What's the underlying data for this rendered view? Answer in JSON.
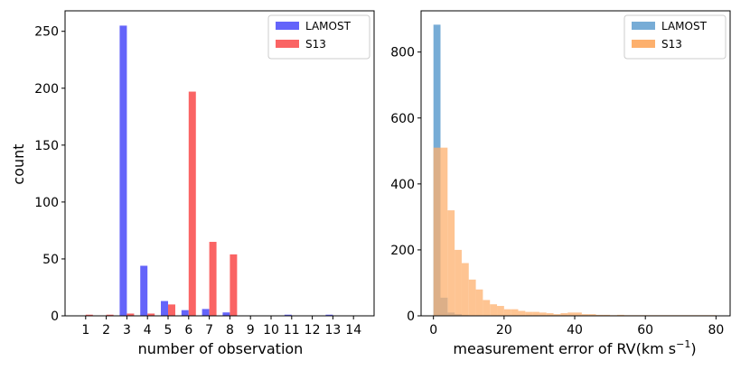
{
  "chart_data": [
    {
      "type": "bar",
      "title": "",
      "xlabel": "number of observation",
      "ylabel": "count",
      "categories": [
        "1",
        "2",
        "3",
        "4",
        "5",
        "6",
        "7",
        "8",
        "9",
        "10",
        "11",
        "12",
        "13",
        "14"
      ],
      "xlim": [
        0,
        15
      ],
      "ylim": [
        0,
        268
      ],
      "yticks": [
        0,
        50,
        100,
        150,
        200,
        250
      ],
      "legend_position": "top-right",
      "series": [
        {
          "name": "LAMOST",
          "color": "#6464fa",
          "values": [
            0,
            0,
            255,
            44,
            13,
            5,
            6,
            3,
            0,
            0,
            1,
            0,
            1,
            0
          ]
        },
        {
          "name": "S13",
          "color": "#fa6464",
          "values": [
            1,
            1,
            2,
            2,
            10,
            197,
            65,
            54,
            0,
            0,
            0,
            0,
            0,
            0
          ]
        }
      ]
    },
    {
      "type": "bar",
      "subtype": "histogram",
      "title": "",
      "xlabel": "measurement error of RV(km s",
      "xlabel_superscript": "−1",
      "xlabel_close": ")",
      "ylabel": "",
      "xlim": [
        -3.5,
        84
      ],
      "ylim": [
        0,
        925
      ],
      "xticks": [
        0,
        20,
        40,
        60,
        80
      ],
      "yticks": [
        0,
        200,
        400,
        600,
        800
      ],
      "legend_position": "top-right",
      "series": [
        {
          "name": "LAMOST",
          "color": "#77acd6",
          "bin_start": 0,
          "bin_width": 2,
          "values": [
            883,
            55,
            10,
            5,
            2
          ]
        },
        {
          "name": "S13",
          "color": "#fdb06d",
          "bin_start": 0,
          "bin_width": 2,
          "values": [
            510,
            510,
            320,
            200,
            160,
            110,
            80,
            48,
            35,
            30,
            20,
            20,
            15,
            12,
            12,
            10,
            8,
            5,
            8,
            10,
            10,
            5,
            5,
            3,
            3,
            2,
            3,
            2,
            2,
            2,
            2,
            2,
            2,
            2,
            2,
            2,
            2,
            2,
            2,
            2
          ]
        }
      ]
    }
  ]
}
